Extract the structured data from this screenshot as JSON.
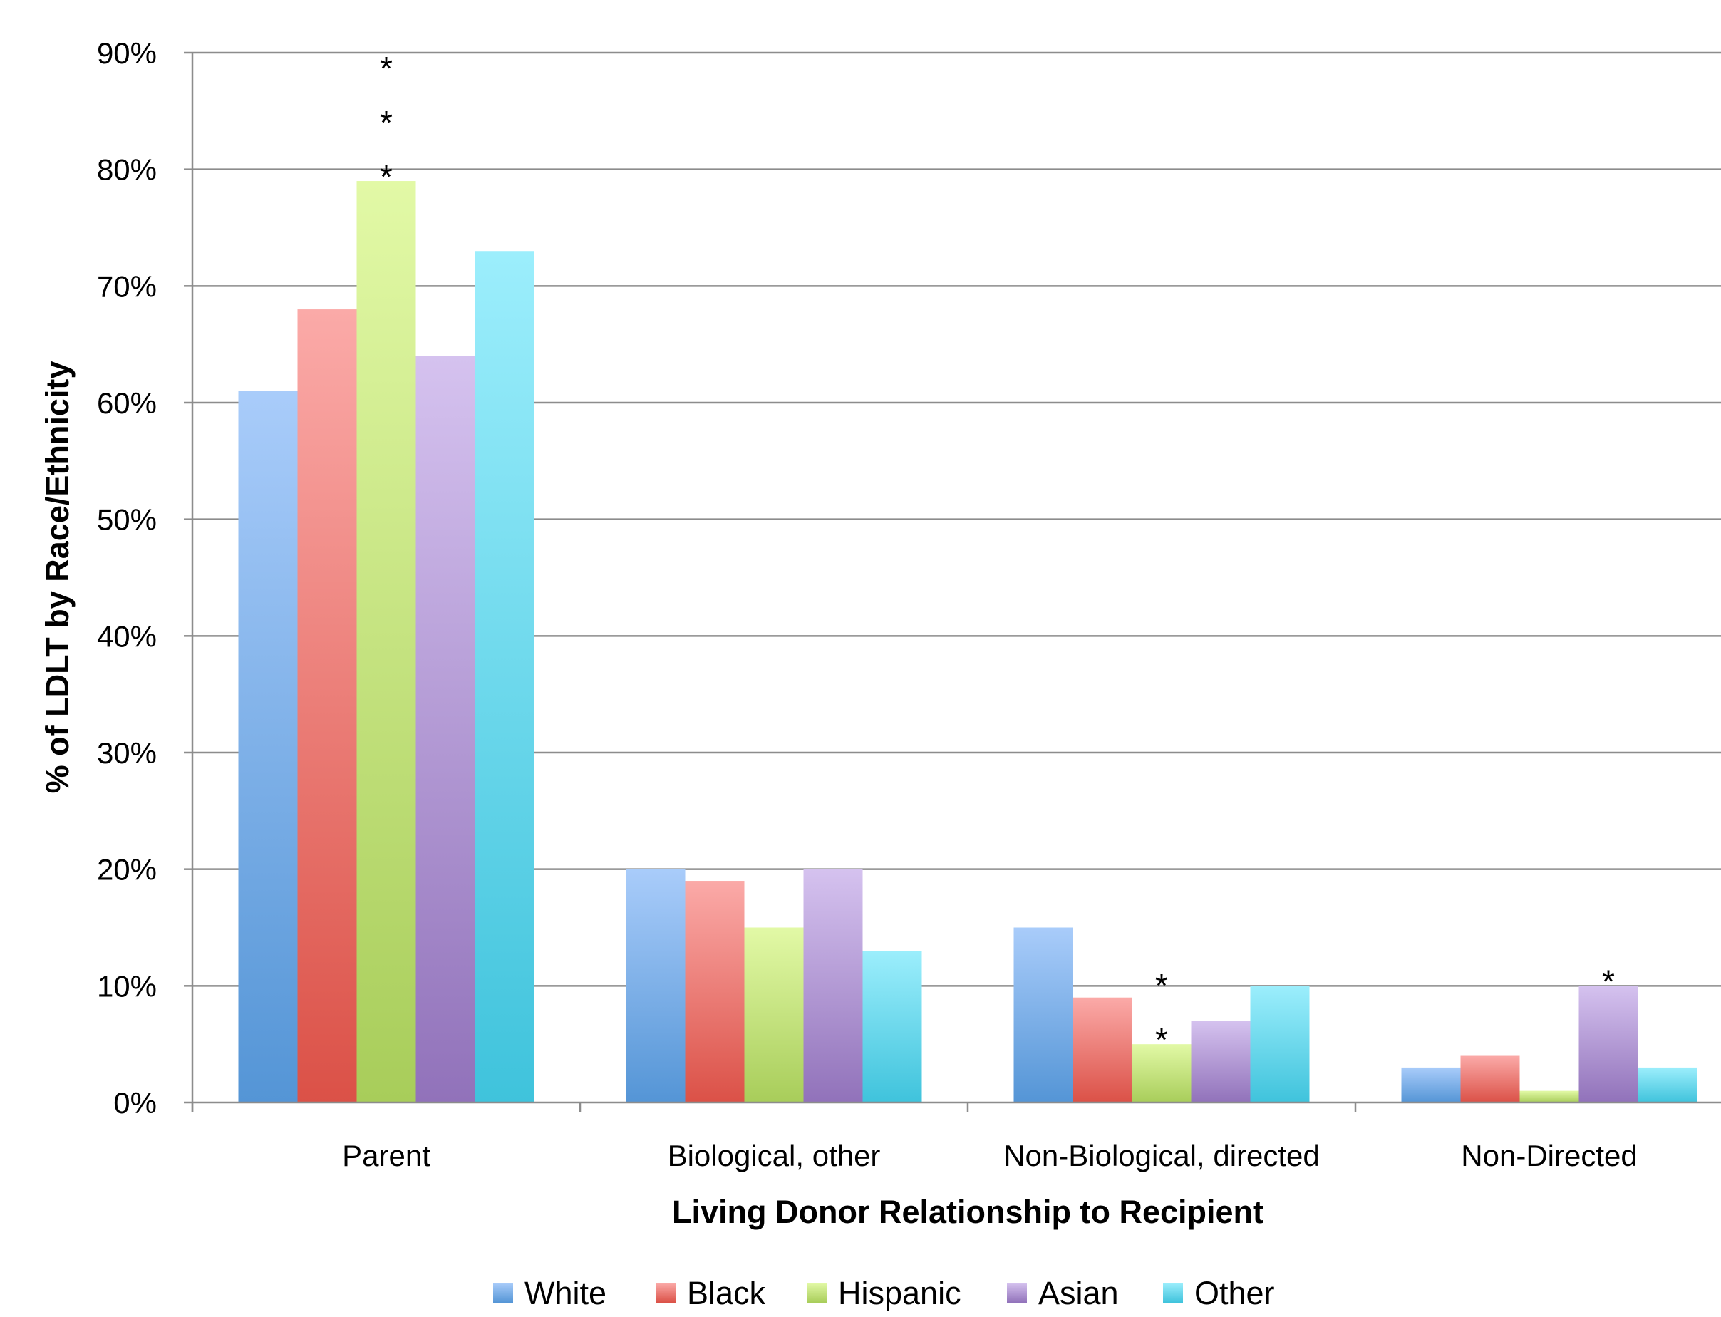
{
  "chart_data": {
    "type": "bar",
    "title": "",
    "xlabel": "Living Donor Relationship to Recipient",
    "ylabel": "% of LDLT by Race/Ethnicity",
    "ylim": [
      0,
      90
    ],
    "yticks": [
      "0%",
      "10%",
      "20%",
      "30%",
      "40%",
      "50%",
      "60%",
      "70%",
      "80%",
      "90%"
    ],
    "grid": true,
    "legend_position": "bottom",
    "categories": [
      "Parent",
      "Biological, other",
      "Non-Biological, directed",
      "Non-Directed"
    ],
    "series": [
      {
        "name": "White",
        "values": [
          61,
          20,
          15,
          3
        ],
        "color_top": "#a9ccfa",
        "color_bottom": "#5495d6"
      },
      {
        "name": "Black",
        "values": [
          68,
          19,
          9,
          4
        ],
        "color_top": "#fbaaa8",
        "color_bottom": "#db5147"
      },
      {
        "name": "Hispanic",
        "values": [
          79,
          15,
          5,
          1
        ],
        "color_top": "#e2f9a6",
        "color_bottom": "#a8cd5a"
      },
      {
        "name": "Asian",
        "values": [
          64,
          20,
          7,
          10
        ],
        "color_top": "#d5c2ef",
        "color_bottom": "#9172ba"
      },
      {
        "name": "Other",
        "values": [
          73,
          13,
          10,
          3
        ],
        "color_top": "#9ceefc",
        "color_bottom": "#3fc3dc"
      }
    ],
    "annotations": [
      {
        "category": "Parent",
        "series": "Hispanic",
        "text": "***"
      },
      {
        "category": "Non-Biological, directed",
        "series": "Hispanic",
        "text": "**"
      },
      {
        "category": "Non-Directed",
        "series": "Asian",
        "text": "*"
      }
    ]
  }
}
